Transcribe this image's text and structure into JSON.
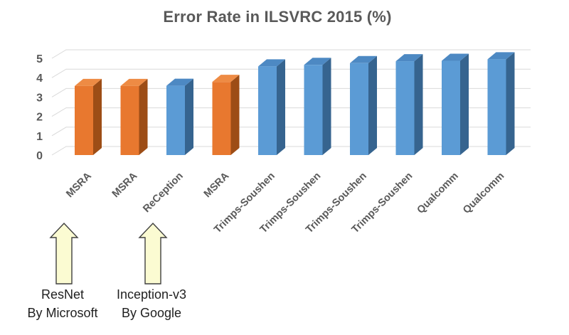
{
  "title": "Error Rate in ILSVRC 2015 (%)",
  "colors": {
    "title_text": "#595959",
    "axis_text": "#595959",
    "gridline": "#D9D9D9",
    "orange_front": "#E8782F",
    "orange_top": "#EE8B44",
    "orange_side": "#9D4D16",
    "blue_front": "#5B9BD5",
    "blue_top": "#4D89C3",
    "blue_side": "#36648F",
    "annotation_text": "#1F1F1F",
    "arrow_fill": "#FBFBD2",
    "arrow_stroke": "#3F3F3F"
  },
  "chart_data": {
    "type": "bar",
    "projection": "3d",
    "title": "Error Rate in ILSVRC 2015 (%)",
    "categories": [
      "MSRA",
      "MSRA",
      "ReCeption",
      "MSRA",
      "Trimps-Soushen",
      "Trimps-Soushen",
      "Trimps-Soushen",
      "Trimps-Soushen",
      "Qualcomm",
      "Qualcomm"
    ],
    "values": [
      3.57,
      3.57,
      3.58,
      3.78,
      4.58,
      4.66,
      4.75,
      4.85,
      4.87,
      4.95
    ],
    "bar_colors": [
      "orange",
      "orange",
      "blue",
      "orange",
      "blue",
      "blue",
      "blue",
      "blue",
      "blue",
      "blue"
    ],
    "xlabel": "",
    "ylabel": "",
    "ylim": [
      0,
      5
    ],
    "yticks": [
      0,
      1,
      2,
      3,
      4,
      5
    ],
    "grid": true,
    "legend": false
  },
  "annotations": [
    {
      "arrow": "up",
      "line1": "ResNet",
      "line2": "By Microsoft",
      "target_category": "MSRA"
    },
    {
      "arrow": "up",
      "line1": "Inception-v3",
      "line2": "By Google",
      "target_category": "ReCeption"
    }
  ]
}
